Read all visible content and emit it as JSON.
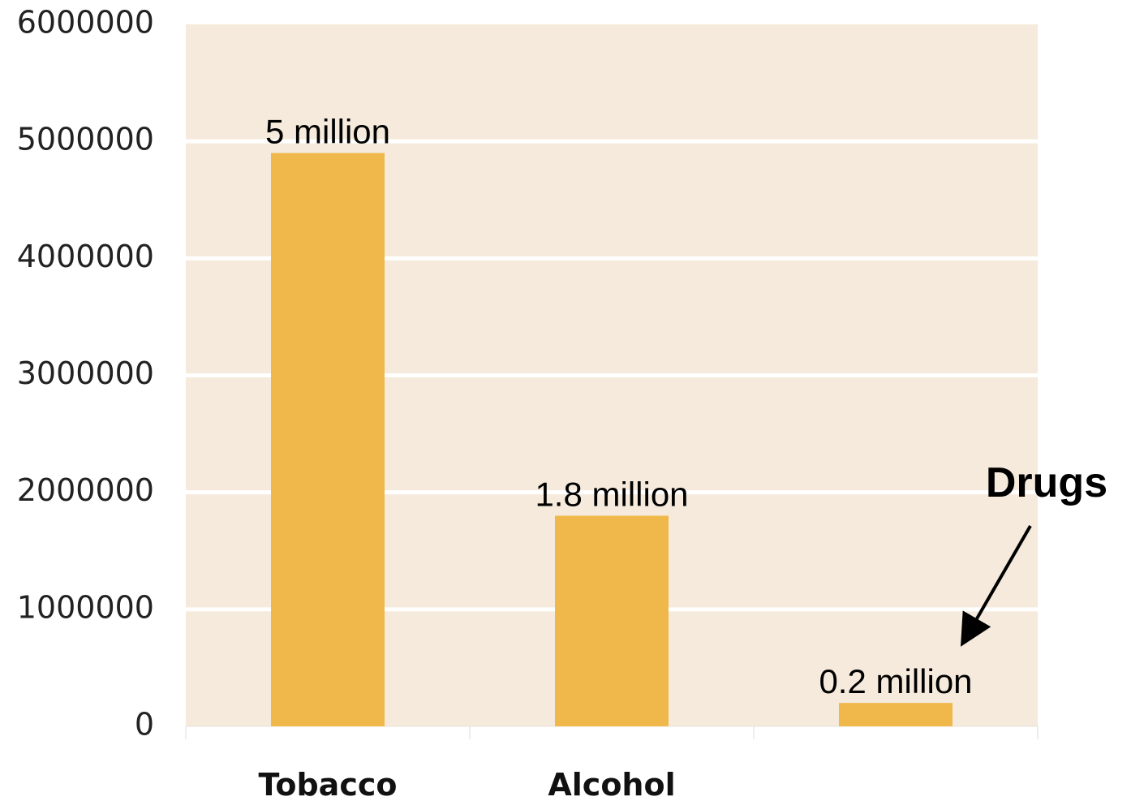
{
  "chart_data": {
    "type": "bar",
    "categories": [
      "Tobacco",
      "Alcohol",
      ""
    ],
    "values": [
      4900000,
      1800000,
      200000
    ],
    "data_labels": [
      "5 million",
      "1.8 million",
      "0.2 million"
    ],
    "ylim": [
      0,
      6000000
    ],
    "yticks": [
      0,
      1000000,
      2000000,
      3000000,
      4000000,
      5000000,
      6000000
    ],
    "ytick_labels": [
      "0",
      "1000000",
      "2000000",
      "3000000",
      "4000000",
      "5000000",
      "6000000"
    ],
    "grid": true,
    "callout": {
      "text": "Drugs",
      "category_index": 2
    },
    "title": "",
    "xlabel": "",
    "ylabel": ""
  },
  "colors": {
    "plot_background": "#f5eadb",
    "bar": "#f0b84a",
    "gridline": "#ffffff"
  }
}
